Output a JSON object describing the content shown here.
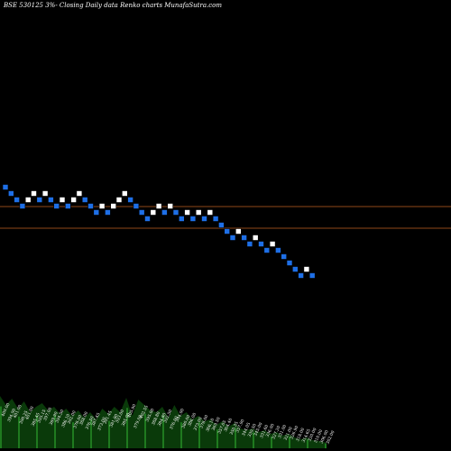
{
  "chart_data": {
    "type": "renko",
    "title": "BSE 530125 3%-  Closing Daily data  Renko  charts MunafaSutra.com",
    "colors": {
      "background": "#000000",
      "up_brick": "#ffffff",
      "down_brick": "#1e6fe6",
      "reference_line": "#c06020",
      "volume_area": "#0a3a0a",
      "volume_highlight": "#1f7a1f"
    },
    "y_range": [
      0,
      500
    ],
    "reference_levels": [
      229,
      253
    ],
    "bricks": [
      {
        "i": 0,
        "level": 208,
        "dir": "down"
      },
      {
        "i": 1,
        "level": 215,
        "dir": "down"
      },
      {
        "i": 2,
        "level": 222,
        "dir": "down"
      },
      {
        "i": 3,
        "level": 229,
        "dir": "down"
      },
      {
        "i": 4,
        "level": 222,
        "dir": "up"
      },
      {
        "i": 5,
        "level": 215,
        "dir": "up"
      },
      {
        "i": 6,
        "level": 222,
        "dir": "down"
      },
      {
        "i": 7,
        "level": 215,
        "dir": "up"
      },
      {
        "i": 8,
        "level": 222,
        "dir": "down"
      },
      {
        "i": 9,
        "level": 229,
        "dir": "down"
      },
      {
        "i": 10,
        "level": 222,
        "dir": "up"
      },
      {
        "i": 11,
        "level": 229,
        "dir": "down"
      },
      {
        "i": 12,
        "level": 222,
        "dir": "up"
      },
      {
        "i": 13,
        "level": 215,
        "dir": "up"
      },
      {
        "i": 14,
        "level": 222,
        "dir": "down"
      },
      {
        "i": 15,
        "level": 229,
        "dir": "down"
      },
      {
        "i": 16,
        "level": 236,
        "dir": "down"
      },
      {
        "i": 17,
        "level": 229,
        "dir": "up"
      },
      {
        "i": 18,
        "level": 236,
        "dir": "down"
      },
      {
        "i": 19,
        "level": 229,
        "dir": "up"
      },
      {
        "i": 20,
        "level": 222,
        "dir": "up"
      },
      {
        "i": 21,
        "level": 215,
        "dir": "up"
      },
      {
        "i": 22,
        "level": 222,
        "dir": "down"
      },
      {
        "i": 23,
        "level": 229,
        "dir": "down"
      },
      {
        "i": 24,
        "level": 236,
        "dir": "down"
      },
      {
        "i": 25,
        "level": 243,
        "dir": "down"
      },
      {
        "i": 26,
        "level": 236,
        "dir": "up"
      },
      {
        "i": 27,
        "level": 229,
        "dir": "up"
      },
      {
        "i": 28,
        "level": 236,
        "dir": "down"
      },
      {
        "i": 29,
        "level": 229,
        "dir": "up"
      },
      {
        "i": 30,
        "level": 236,
        "dir": "down"
      },
      {
        "i": 31,
        "level": 243,
        "dir": "down"
      },
      {
        "i": 32,
        "level": 236,
        "dir": "up"
      },
      {
        "i": 33,
        "level": 243,
        "dir": "down"
      },
      {
        "i": 34,
        "level": 236,
        "dir": "up"
      },
      {
        "i": 35,
        "level": 243,
        "dir": "down"
      },
      {
        "i": 36,
        "level": 236,
        "dir": "up"
      },
      {
        "i": 37,
        "level": 243,
        "dir": "down"
      },
      {
        "i": 38,
        "level": 250,
        "dir": "down"
      },
      {
        "i": 39,
        "level": 257,
        "dir": "down"
      },
      {
        "i": 40,
        "level": 264,
        "dir": "down"
      },
      {
        "i": 41,
        "level": 257,
        "dir": "up"
      },
      {
        "i": 42,
        "level": 264,
        "dir": "down"
      },
      {
        "i": 43,
        "level": 271,
        "dir": "down"
      },
      {
        "i": 44,
        "level": 264,
        "dir": "up"
      },
      {
        "i": 45,
        "level": 271,
        "dir": "down"
      },
      {
        "i": 46,
        "level": 278,
        "dir": "down"
      },
      {
        "i": 47,
        "level": 271,
        "dir": "up"
      },
      {
        "i": 48,
        "level": 278,
        "dir": "down"
      },
      {
        "i": 49,
        "level": 285,
        "dir": "down"
      },
      {
        "i": 50,
        "level": 292,
        "dir": "down"
      },
      {
        "i": 51,
        "level": 299,
        "dir": "down"
      },
      {
        "i": 52,
        "level": 306,
        "dir": "down"
      },
      {
        "i": 53,
        "level": 299,
        "dir": "up"
      },
      {
        "i": 54,
        "level": 306,
        "dir": "down"
      }
    ],
    "volume_labels": [
      {
        "text": "409.00",
        "h": 58
      },
      {
        "text": "394.90",
        "h": 48
      },
      {
        "text": "401.00",
        "h": 55
      },
      {
        "text": "390.25",
        "h": 44
      },
      {
        "text": "401.00",
        "h": 52
      },
      {
        "text": "385.45",
        "h": 40
      },
      {
        "text": "395.15",
        "h": 46
      },
      {
        "text": "397.00",
        "h": 50
      },
      {
        "text": "389.90",
        "h": 42
      },
      {
        "text": "394.50",
        "h": 46
      },
      {
        "text": "386.10",
        "h": 38
      },
      {
        "text": "392.00",
        "h": 44
      },
      {
        "text": "378.00",
        "h": 36
      },
      {
        "text": "388.00",
        "h": 42
      },
      {
        "text": "376.50",
        "h": 34
      },
      {
        "text": "387.45",
        "h": 40
      },
      {
        "text": "373.00",
        "h": 32
      },
      {
        "text": "391.45",
        "h": 44
      },
      {
        "text": "381.80",
        "h": 38
      },
      {
        "text": "393.00",
        "h": 46
      },
      {
        "text": "385.00",
        "h": 40
      },
      {
        "text": "405.90",
        "h": 56
      },
      {
        "text": "379.00",
        "h": 36
      },
      {
        "text": "402.55",
        "h": 54
      },
      {
        "text": "395.00",
        "h": 48
      },
      {
        "text": "388.80",
        "h": 42
      },
      {
        "text": "384.80",
        "h": 40
      },
      {
        "text": "392.50",
        "h": 46
      },
      {
        "text": "376.00",
        "h": 34
      },
      {
        "text": "394.00",
        "h": 48
      },
      {
        "text": "380.00",
        "h": 36
      },
      {
        "text": "386.00",
        "h": 40
      },
      {
        "text": "373.00",
        "h": 32
      },
      {
        "text": "378.00",
        "h": 36
      },
      {
        "text": "366.10",
        "h": 30
      },
      {
        "text": "369.50",
        "h": 32
      },
      {
        "text": "357.05",
        "h": 26
      },
      {
        "text": "364.40",
        "h": 30
      },
      {
        "text": "350.35",
        "h": 24
      },
      {
        "text": "357.90",
        "h": 28
      },
      {
        "text": "344.05",
        "h": 22
      },
      {
        "text": "339.50",
        "h": 20
      },
      {
        "text": "345.00",
        "h": 22
      },
      {
        "text": "331.60",
        "h": 18
      },
      {
        "text": "336.00",
        "h": 20
      },
      {
        "text": "327.20",
        "h": 16
      },
      {
        "text": "331.00",
        "h": 18
      },
      {
        "text": "321.00",
        "h": 14
      },
      {
        "text": "326.90",
        "h": 16
      },
      {
        "text": "318.00",
        "h": 12
      },
      {
        "text": "314.65",
        "h": 10
      },
      {
        "text": "320.00",
        "h": 12
      },
      {
        "text": "310.00",
        "h": 9
      },
      {
        "text": "306.00",
        "h": 8
      },
      {
        "text": "302.00",
        "h": 7
      }
    ]
  }
}
